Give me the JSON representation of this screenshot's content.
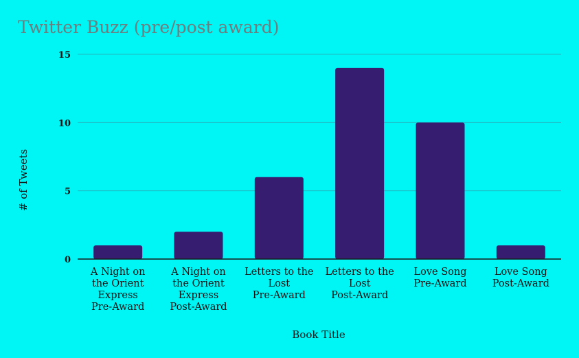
{
  "chart_data": {
    "type": "bar",
    "title": "Twitter Buzz (pre/post award)",
    "xlabel": "Book Title",
    "ylabel": "# of Tweets",
    "categories": [
      [
        "A Night on",
        "the Orient",
        "Express",
        "Pre-Award"
      ],
      [
        "A Night on",
        "the Orient",
        "Express",
        "Post-Award"
      ],
      [
        "Letters to the",
        "Lost",
        "Pre-Award"
      ],
      [
        "Letters to the",
        "Lost",
        "Post-Award"
      ],
      [
        "Love Song",
        "Pre-Award"
      ],
      [
        "Love Song",
        "Post-Award"
      ]
    ],
    "values": [
      1,
      2,
      6,
      14,
      10,
      1
    ],
    "ylim": [
      0,
      15
    ],
    "yticks": [
      0,
      5,
      10,
      15
    ],
    "grid": true,
    "legend": "none",
    "colors": {
      "background": "#00f5f5",
      "bar": "#361d70",
      "title": "#6e7e7e",
      "grid": "#22b7c0"
    }
  }
}
